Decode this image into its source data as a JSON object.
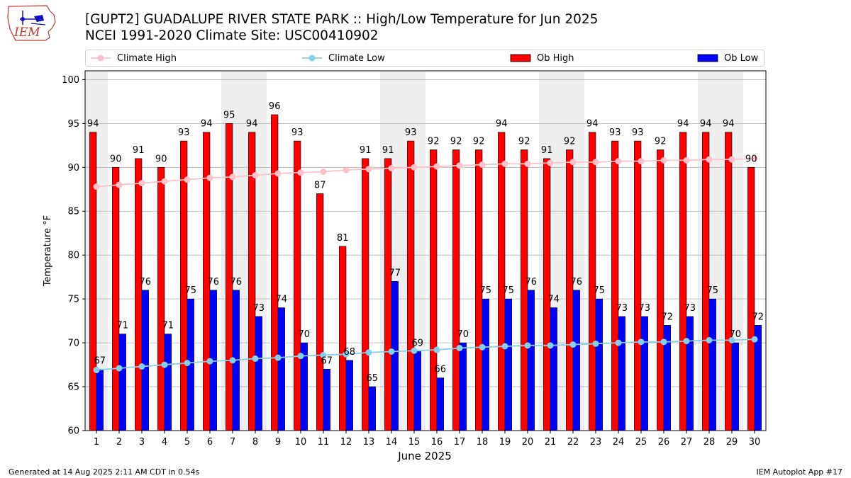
{
  "header": {
    "logo_text": "IEM",
    "title_line1": "[GUPT2] GUADALUPE RIVER STATE PARK :: High/Low Temperature for Jun 2025",
    "title_line2": "NCEI 1991-2020 Climate Site: USC00410902"
  },
  "footer": {
    "generated": "Generated at 14 Aug 2025 2:11 AM CDT in 0.54s",
    "app": "IEM Autoplot App #17"
  },
  "colors": {
    "ob_high": "#ff0000",
    "ob_low": "#0000ff",
    "climate_high": "#ffc0cb",
    "climate_low": "#87ceeb",
    "weekend_shade": "#eeeeee",
    "grid": "#b0b0b0"
  },
  "chart_data": {
    "type": "bar",
    "xlabel": "June 2025",
    "ylabel": "Temperature °F",
    "ylim": [
      60,
      101
    ],
    "yticks": [
      60,
      65,
      70,
      75,
      80,
      85,
      90,
      95,
      100
    ],
    "grid": "horizontal",
    "legend_placement": "top",
    "shaded_days": [
      1,
      7,
      8,
      14,
      15,
      21,
      22,
      28,
      29
    ],
    "categories": [
      "1",
      "2",
      "3",
      "4",
      "5",
      "6",
      "7",
      "8",
      "9",
      "10",
      "11",
      "12",
      "13",
      "14",
      "15",
      "16",
      "17",
      "18",
      "19",
      "20",
      "21",
      "22",
      "23",
      "24",
      "25",
      "26",
      "27",
      "28",
      "29",
      "30"
    ],
    "series": [
      {
        "name": "Ob High",
        "kind": "bar",
        "values": [
          94,
          90,
          91,
          90,
          93,
          94,
          95,
          94,
          96,
          93,
          87,
          81,
          91,
          91,
          93,
          92,
          92,
          92,
          94,
          92,
          91,
          92,
          94,
          93,
          93,
          92,
          94,
          94,
          94,
          90
        ]
      },
      {
        "name": "Ob Low",
        "kind": "bar",
        "values": [
          67,
          71,
          76,
          71,
          75,
          76,
          76,
          73,
          74,
          70,
          67,
          68,
          65,
          77,
          69,
          66,
          70,
          75,
          75,
          76,
          74,
          76,
          75,
          73,
          73,
          72,
          73,
          75,
          70,
          72
        ]
      },
      {
        "name": "Climate High",
        "kind": "line",
        "values": [
          87.8,
          88.0,
          88.2,
          88.4,
          88.6,
          88.8,
          88.9,
          89.1,
          89.3,
          89.4,
          89.5,
          89.7,
          89.8,
          89.9,
          90.0,
          90.1,
          90.2,
          90.3,
          90.4,
          90.4,
          90.5,
          90.6,
          90.6,
          90.7,
          90.7,
          90.8,
          90.8,
          90.9,
          90.9,
          91.0
        ]
      },
      {
        "name": "Climate Low",
        "kind": "line",
        "values": [
          66.9,
          67.1,
          67.3,
          67.5,
          67.7,
          67.9,
          68.0,
          68.2,
          68.3,
          68.5,
          68.6,
          68.7,
          68.9,
          69.0,
          69.1,
          69.2,
          69.4,
          69.5,
          69.6,
          69.7,
          69.7,
          69.8,
          69.9,
          70.0,
          70.1,
          70.1,
          70.2,
          70.3,
          70.3,
          70.4
        ]
      }
    ]
  }
}
